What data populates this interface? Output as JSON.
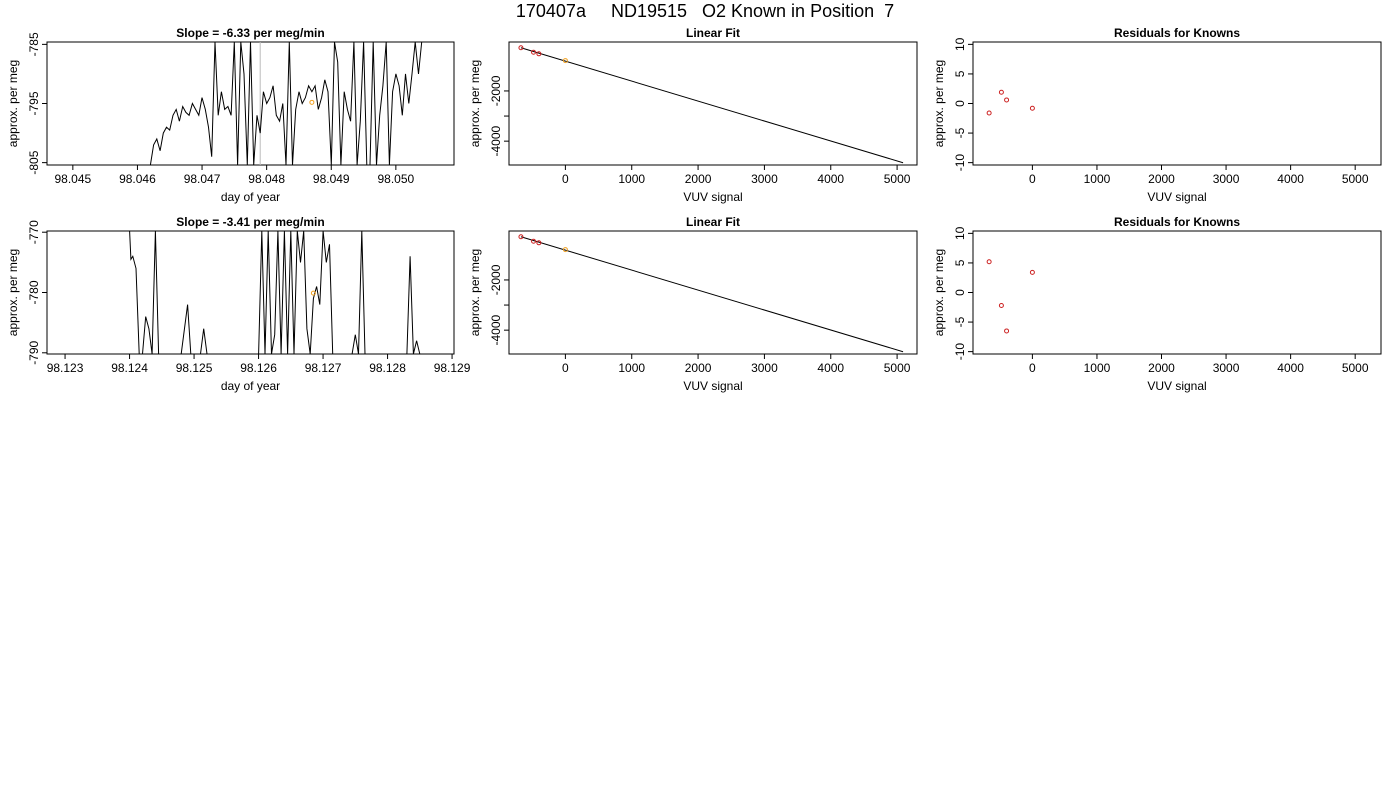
{
  "figure": {
    "title": "170407a     ND19515   O2 Known in Position  7"
  },
  "chart_data": [
    {
      "type": "line",
      "title": "Slope =  -6.33  per meg/min",
      "xlabel": "day of year",
      "ylabel": "approx. per meg",
      "xlim": [
        98.0446,
        98.0509
      ],
      "ylim": [
        -805.4,
        -784.6
      ],
      "xticks": [
        98.045,
        98.046,
        98.047,
        98.048,
        98.049,
        98.05
      ],
      "xtick_labels": [
        "98.045",
        "98.046",
        "98.047",
        "98.048",
        "98.049",
        "98.050"
      ],
      "yticks": [
        -785,
        -795,
        -805
      ],
      "ytick_labels": [
        "-785",
        "-795",
        "-805"
      ],
      "vline": 98.0479,
      "highlight_point": [
        98.0487,
        -794.8
      ],
      "series": [
        {
          "x": [
            98.0462,
            98.04625,
            98.0463,
            98.04635,
            98.0464,
            98.04645,
            98.0465,
            98.04655,
            98.0466,
            98.04665,
            98.0467,
            98.04675,
            98.0468,
            98.04685,
            98.0469,
            98.04695,
            98.047,
            98.04705,
            98.0471,
            98.04715,
            98.0472,
            98.04725,
            98.0473,
            98.04735,
            98.0474,
            98.04745,
            98.0475,
            98.04755,
            98.0476,
            98.04765,
            98.0477,
            98.04775,
            98.0478,
            98.04785,
            98.0479,
            98.04795,
            98.048,
            98.04805,
            98.0481,
            98.04815,
            98.0482,
            98.04825,
            98.0483,
            98.04835,
            98.0484,
            98.04845,
            98.0485,
            98.04855,
            98.0486,
            98.04865,
            98.0487,
            98.04875,
            98.0488,
            98.04885,
            98.0489,
            98.04895,
            98.049,
            98.04905,
            98.0491,
            98.04915,
            98.0492,
            98.04925,
            98.0493,
            98.04935,
            98.0494,
            98.04945,
            98.0495,
            98.04955,
            98.0496,
            98.04965,
            98.0497,
            98.04975,
            98.0498,
            98.04985,
            98.0499,
            98.04995,
            98.05,
            98.05005,
            98.0501,
            98.05015,
            98.0502,
            98.05025,
            98.0503,
            98.05035,
            98.0504,
            98.05045,
            98.0505,
            98.05055
          ],
          "y": [
            -805.4,
            -802.0,
            -801.0,
            -803.0,
            -800.0,
            -799.0,
            -799.5,
            -797.0,
            -796.0,
            -798.0,
            -795.5,
            -796.5,
            -797.0,
            -795.0,
            -796.0,
            -797.0,
            -794.0,
            -796.0,
            -799.0,
            -804.0,
            -784.6,
            -797.0,
            -793.0,
            -796.0,
            -795.5,
            -797.0,
            -784.6,
            -805.4,
            -784.6,
            -790.0,
            -805.4,
            -784.6,
            -805.4,
            -797.0,
            -800.0,
            -793.0,
            -795.0,
            -794.0,
            -792.0,
            -797.0,
            -798.0,
            -795.0,
            -805.4,
            -784.6,
            -805.4,
            -796.0,
            -793.0,
            -795.0,
            -794.0,
            -792.0,
            -793.0,
            -792.0,
            -796.0,
            -794.0,
            -791.0,
            -793.0,
            -805.4,
            -784.6,
            -788.0,
            -805.4,
            -793.0,
            -796.0,
            -798.0,
            -784.6,
            -805.4,
            -798.0,
            -784.6,
            -805.4,
            -805.4,
            -784.6,
            -805.4,
            -797.0,
            -792.0,
            -784.6,
            -805.4,
            -793.0,
            -790.0,
            -792.0,
            -797.0,
            -790.0,
            -795.0,
            -790.0,
            -784.6,
            -790.0,
            -784.6,
            -784.6,
            -784.6,
            -784.6
          ]
        }
      ]
    },
    {
      "type": "scatter",
      "title": "Linear Fit",
      "xlabel": "VUV signal",
      "ylabel": "approx. per meg",
      "xlim": [
        -850,
        5300
      ],
      "ylim": [
        -4950,
        -50
      ],
      "xticks": [
        0,
        1000,
        2000,
        3000,
        4000,
        5000
      ],
      "xtick_labels": [
        "0",
        "1000",
        "2000",
        "3000",
        "4000",
        "5000"
      ],
      "yticks": [
        -2000,
        -3000,
        -4000
      ],
      "ytick_labels": [
        "-2000",
        "",
        "-4000"
      ],
      "points": {
        "x": [
          -670,
          -480,
          -400
        ],
        "y": [
          -280,
          -460,
          -520
        ]
      },
      "highlight_point": [
        0,
        -790
      ],
      "fit_line": {
        "x": [
          -670,
          5090
        ],
        "y": [
          -280,
          -4860
        ]
      }
    },
    {
      "type": "scatter",
      "title": "Residuals for Knowns",
      "xlabel": "VUV signal",
      "ylabel": "approx. per meg",
      "xlim": [
        -920,
        5400
      ],
      "ylim": [
        -10.4,
        10.4
      ],
      "xticks": [
        0,
        1000,
        2000,
        3000,
        4000,
        5000
      ],
      "xtick_labels": [
        "0",
        "1000",
        "2000",
        "3000",
        "4000",
        "5000"
      ],
      "yticks": [
        10,
        5,
        0,
        -5,
        -10
      ],
      "ytick_labels": [
        "10",
        "5",
        "0",
        "-5",
        "-10"
      ],
      "points": {
        "x": [
          -670,
          -480,
          -400,
          0
        ],
        "y": [
          -1.6,
          1.9,
          0.6,
          -0.8
        ]
      }
    },
    {
      "type": "line",
      "title": "Slope =  -3.41  per meg/min",
      "xlabel": "day of year",
      "ylabel": "approx. per meg",
      "xlim": [
        98.12272,
        98.12903
      ],
      "ylim": [
        -790.2,
        -769.8
      ],
      "xticks": [
        98.123,
        98.124,
        98.125,
        98.126,
        98.127,
        98.128,
        98.129
      ],
      "xtick_labels": [
        "98.123",
        "98.124",
        "98.125",
        "98.126",
        "98.127",
        "98.128",
        "98.129"
      ],
      "yticks": [
        -770,
        -780,
        -790
      ],
      "ytick_labels": [
        "-770",
        "-780",
        "-790"
      ],
      "highlight_point": [
        98.12685,
        -780.1
      ],
      "series": [
        {
          "x": [
            98.124,
            98.12402,
            98.12405,
            98.1241,
            98.12415,
            98.1242,
            98.12425,
            98.1243,
            98.12435,
            98.1244,
            98.12445,
            98.1245,
            98.1248,
            98.1249,
            98.12495,
            98.125,
            98.1251,
            98.12515,
            98.1252,
            98.12525,
            98.1253,
            98.1254,
            98.1255,
            98.1256,
            98.1257,
            98.1258,
            98.1259,
            98.126,
            98.12605,
            98.1261,
            98.12615,
            98.1262,
            98.12625,
            98.1263,
            98.12635,
            98.1264,
            98.12645,
            98.1265,
            98.12655,
            98.1266,
            98.12665,
            98.1267,
            98.12675,
            98.1268,
            98.12685,
            98.1269,
            98.12695,
            98.127,
            98.12705,
            98.1271,
            98.12715,
            98.1272,
            98.12725,
            98.1273,
            98.12735,
            98.1274,
            98.12745,
            98.1275,
            98.12755,
            98.1276,
            98.12765,
            98.1277,
            98.12775,
            98.1278,
            98.1279,
            98.128,
            98.1281,
            98.1282,
            98.1283,
            98.12835,
            98.1284,
            98.12845,
            98.1285,
            98.1286
          ],
          "y": [
            -769.8,
            -774.5,
            -774.0,
            -776.0,
            -790.2,
            -790.2,
            -784.0,
            -786.0,
            -790.2,
            -769.8,
            -790.2,
            -790.2,
            -790.2,
            -782.0,
            -790.2,
            -790.2,
            -790.2,
            -786.0,
            -790.2,
            -790.2,
            -790.2,
            -790.2,
            -790.2,
            -790.2,
            -790.2,
            -790.2,
            -790.2,
            -790.2,
            -769.8,
            -790.2,
            -769.8,
            -790.2,
            -787.0,
            -769.8,
            -790.2,
            -769.8,
            -790.2,
            -769.8,
            -790.2,
            -769.8,
            -775.0,
            -769.8,
            -786.0,
            -790.2,
            -781.0,
            -779.0,
            -782.0,
            -769.8,
            -775.0,
            -772.0,
            -790.2,
            -790.2,
            -790.2,
            -790.2,
            -790.2,
            -790.2,
            -790.2,
            -787.0,
            -790.2,
            -769.8,
            -790.2,
            -790.2,
            -790.2,
            -790.2,
            -790.2,
            -790.2,
            -790.2,
            -790.2,
            -790.2,
            -774.0,
            -790.2,
            -788.0,
            -790.2,
            -790.2
          ]
        }
      ]
    },
    {
      "type": "scatter",
      "title": "Linear Fit",
      "xlabel": "VUV signal",
      "ylabel": "approx. per meg",
      "xlim": [
        -850,
        5300
      ],
      "ylim": [
        -4950,
        -50
      ],
      "xticks": [
        0,
        1000,
        2000,
        3000,
        4000,
        5000
      ],
      "xtick_labels": [
        "0",
        "1000",
        "2000",
        "3000",
        "4000",
        "5000"
      ],
      "yticks": [
        -2000,
        -3000,
        -4000
      ],
      "ytick_labels": [
        "-2000",
        "",
        "-4000"
      ],
      "points": {
        "x": [
          -670,
          -480,
          -400
        ],
        "y": [
          -280,
          -460,
          -520
        ]
      },
      "highlight_point": [
        0,
        -790
      ],
      "fit_line": {
        "x": [
          -670,
          5090
        ],
        "y": [
          -280,
          -4860
        ]
      }
    },
    {
      "type": "scatter",
      "title": "Residuals for Knowns",
      "xlabel": "VUV signal",
      "ylabel": "approx. per meg",
      "xlim": [
        -920,
        5400
      ],
      "ylim": [
        -10.4,
        10.4
      ],
      "xticks": [
        0,
        1000,
        2000,
        3000,
        4000,
        5000
      ],
      "xtick_labels": [
        "0",
        "1000",
        "2000",
        "3000",
        "4000",
        "5000"
      ],
      "yticks": [
        10,
        5,
        0,
        -5,
        -10
      ],
      "ytick_labels": [
        "10",
        "5",
        "0",
        "-5",
        "-10"
      ],
      "points": {
        "x": [
          -670,
          -480,
          -400,
          0
        ],
        "y": [
          5.2,
          -2.2,
          -6.5,
          3.4
        ]
      }
    }
  ]
}
